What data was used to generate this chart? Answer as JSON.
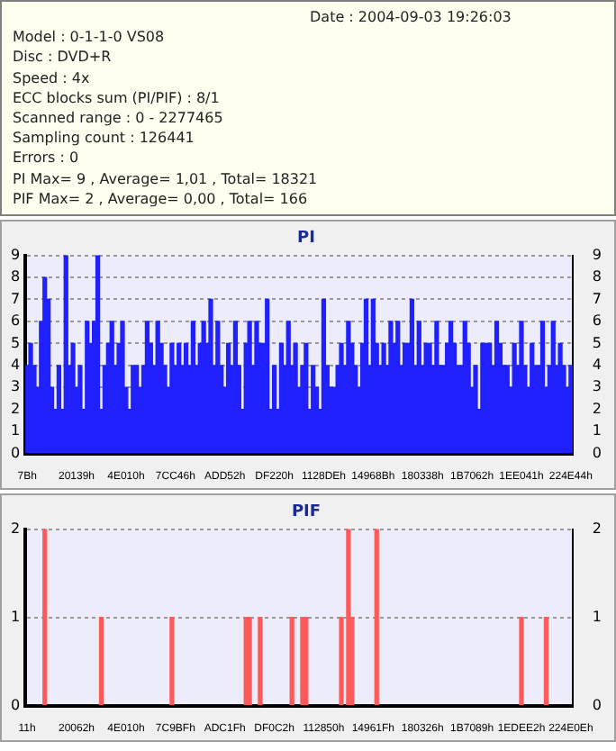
{
  "chart_data": [
    {
      "type": "other",
      "annotations": [
        "Date : 2004-09-03 19:26:03",
        "Model : 0-1-1-0 VS08",
        "Disc : DVD+R",
        "Speed : 4x",
        "ECC blocks sum (PI/PIF) : 8/1",
        "Scanned range : 0 - 2277465",
        "Sampling count : 126441",
        "Errors : 0",
        "PI Max= 9 , Average= 1,01 , Total= 18321",
        "PIF Max= 2 , Average= 0,00 , Total= 166"
      ]
    },
    {
      "type": "bar",
      "title": "PI",
      "color": "#2020ff",
      "grid": "y",
      "legend": false,
      "ylim": [
        0,
        9
      ],
      "yticks": [
        0,
        1,
        2,
        3,
        4,
        5,
        6,
        7,
        8,
        9
      ],
      "y2lim": [
        0,
        9
      ],
      "y2ticks": [
        0,
        1,
        2,
        3,
        4,
        5,
        6,
        7,
        8,
        9
      ],
      "categories": [
        "7Bh",
        null,
        null,
        null,
        null,
        null,
        null,
        null,
        null,
        null,
        null,
        null,
        null,
        null,
        "20139h",
        null,
        null,
        null,
        null,
        null,
        null,
        null,
        null,
        null,
        null,
        null,
        null,
        null,
        "4E010h",
        null,
        null,
        null,
        null,
        null,
        null,
        null,
        null,
        null,
        null,
        null,
        null,
        null,
        "7CC46h",
        null,
        null,
        null,
        null,
        null,
        null,
        null,
        null,
        null,
        null,
        null,
        null,
        null,
        "ADD52h",
        null,
        null,
        null,
        null,
        null,
        null,
        null,
        null,
        null,
        null,
        null,
        null,
        null,
        "DF220h",
        null,
        null,
        null,
        null,
        null,
        null,
        null,
        null,
        null,
        null,
        null,
        null,
        null,
        "1128DEh",
        null,
        null,
        null,
        null,
        null,
        null,
        null,
        null,
        null,
        null,
        null,
        null,
        null,
        "14968Bh",
        null,
        null,
        null,
        null,
        null,
        null,
        null,
        null,
        null,
        null,
        null,
        null,
        null,
        "180338h",
        null,
        null,
        null,
        null,
        null,
        null,
        null,
        null,
        null,
        null,
        null,
        null,
        null,
        "1B7062h",
        null,
        null,
        null,
        null,
        null,
        null,
        null,
        null,
        null,
        null,
        null,
        null,
        null,
        "1EE041h",
        null,
        null,
        null,
        null,
        null,
        null,
        null,
        null,
        null,
        null,
        null,
        null,
        null,
        "224E44h"
      ],
      "values": [
        4,
        5,
        4,
        3,
        6,
        8,
        7,
        3,
        2,
        4,
        2,
        9,
        4,
        5,
        3,
        4,
        2,
        6,
        5,
        6,
        9,
        2,
        4,
        5,
        6,
        4,
        5,
        6,
        3,
        2,
        4,
        4,
        3,
        4,
        6,
        5,
        4,
        6,
        5,
        4,
        3,
        5,
        4,
        5,
        4,
        5,
        4,
        6,
        4,
        5,
        6,
        5,
        7,
        4,
        6,
        4,
        3,
        5,
        4,
        6,
        4,
        2,
        5,
        6,
        4,
        6,
        5,
        5,
        7,
        2,
        4,
        2,
        5,
        4,
        6,
        4,
        5,
        3,
        4,
        5,
        2,
        4,
        3,
        2,
        7,
        4,
        3,
        3,
        4,
        5,
        4,
        6,
        5,
        4,
        3,
        5,
        7,
        4,
        7,
        5,
        4,
        5,
        4,
        6,
        5,
        6,
        4,
        5,
        5,
        7,
        4,
        6,
        4,
        5,
        5,
        4,
        6,
        4,
        4,
        5,
        6,
        5,
        4,
        4,
        6,
        5,
        3,
        4,
        2,
        5,
        5,
        5,
        4,
        6,
        5,
        4,
        4,
        3,
        5,
        4,
        6,
        4,
        3,
        5,
        4,
        4,
        6,
        3,
        4,
        6,
        4,
        5,
        4,
        3,
        4
      ]
    },
    {
      "type": "bar",
      "title": "PIF",
      "color": "#ff5a5a",
      "grid": "y",
      "legend": false,
      "ylim": [
        0,
        2
      ],
      "yticks": [
        0,
        1,
        2
      ],
      "y2lim": [
        0,
        2
      ],
      "y2ticks": [
        0,
        1,
        2
      ],
      "categories": [
        "11h",
        null,
        null,
        null,
        null,
        null,
        null,
        null,
        null,
        null,
        null,
        null,
        null,
        null,
        "20062h",
        null,
        null,
        null,
        null,
        null,
        null,
        null,
        null,
        null,
        null,
        null,
        null,
        null,
        "4E010h",
        null,
        null,
        null,
        null,
        null,
        null,
        null,
        null,
        null,
        null,
        null,
        null,
        null,
        "7C9BFh",
        null,
        null,
        null,
        null,
        null,
        null,
        null,
        null,
        null,
        null,
        null,
        null,
        null,
        "ADC1Fh",
        null,
        null,
        null,
        null,
        null,
        null,
        null,
        null,
        null,
        null,
        null,
        null,
        null,
        "DF0C2h",
        null,
        null,
        null,
        null,
        null,
        null,
        null,
        null,
        null,
        null,
        null,
        null,
        null,
        "112850h",
        null,
        null,
        null,
        null,
        null,
        null,
        null,
        null,
        null,
        null,
        null,
        null,
        null,
        "14961Fh",
        null,
        null,
        null,
        null,
        null,
        null,
        null,
        null,
        null,
        null,
        null,
        null,
        null,
        "180326h",
        null,
        null,
        null,
        null,
        null,
        null,
        null,
        null,
        null,
        null,
        null,
        null,
        null,
        "1B7089h",
        null,
        null,
        null,
        null,
        null,
        null,
        null,
        null,
        null,
        null,
        null,
        null,
        null,
        "1EDEE2h",
        null,
        null,
        null,
        null,
        null,
        null,
        null,
        null,
        null,
        null,
        null,
        null,
        null,
        "224E0Eh"
      ],
      "values": [
        0,
        0,
        0,
        0,
        0,
        2,
        0,
        0,
        0,
        0,
        0,
        0,
        0,
        0,
        0,
        0,
        0,
        0,
        0,
        0,
        0,
        1,
        0,
        0,
        0,
        0,
        0,
        0,
        0,
        0,
        0,
        0,
        0,
        0,
        0,
        0,
        0,
        0,
        0,
        0,
        0,
        1,
        0,
        0,
        0,
        0,
        0,
        0,
        0,
        0,
        0,
        0,
        0,
        0,
        0,
        0,
        0,
        0,
        0,
        0,
        0,
        0,
        1,
        1,
        0,
        0,
        1,
        0,
        0,
        0,
        0,
        0,
        0,
        0,
        0,
        1,
        0,
        0,
        1,
        1,
        0,
        0,
        0,
        0,
        0,
        0,
        0,
        0,
        0,
        1,
        0,
        2,
        1,
        0,
        0,
        0,
        0,
        0,
        0,
        2,
        0,
        0,
        0,
        0,
        0,
        0,
        0,
        0,
        0,
        0,
        0,
        0,
        0,
        0,
        0,
        0,
        0,
        0,
        0,
        0,
        0,
        0,
        0,
        0,
        0,
        0,
        0,
        0,
        0,
        0,
        0,
        0,
        0,
        0,
        0,
        0,
        0,
        0,
        0,
        0,
        1,
        0,
        0,
        0,
        0,
        0,
        0,
        1,
        0,
        0,
        0,
        0,
        0,
        0,
        0
      ]
    }
  ]
}
